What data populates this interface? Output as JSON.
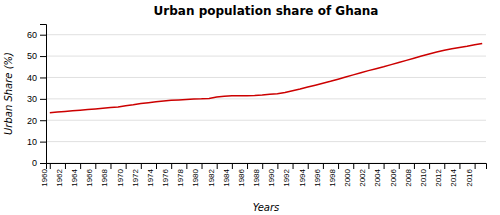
{
  "chart_data": {
    "type": "line",
    "title": "Urban population share of Ghana",
    "x_label": "Years",
    "y_label": "Urban Share (%)",
    "color": "#cc0000",
    "x": [
      1960,
      1961,
      1962,
      1963,
      1964,
      1965,
      1966,
      1967,
      1968,
      1969,
      1970,
      1971,
      1972,
      1973,
      1974,
      1975,
      1976,
      1977,
      1978,
      1979,
      1980,
      1981,
      1982,
      1983,
      1984,
      1985,
      1986,
      1987,
      1988,
      1989,
      1990,
      1991,
      1992,
      1993,
      1994,
      1995,
      1996,
      1997,
      1998,
      1999,
      2000,
      2001,
      2002,
      2003,
      2004,
      2005,
      2006,
      2007,
      2008,
      2009,
      2010,
      2011,
      2012,
      2013,
      2014,
      2015,
      2016,
      2017
    ],
    "values": [
      23.5,
      23.8,
      24.1,
      24.4,
      24.7,
      25.0,
      25.3,
      25.6,
      25.9,
      26.2,
      26.8,
      27.2,
      27.8,
      28.2,
      28.6,
      29.0,
      29.3,
      29.5,
      29.7,
      29.9,
      30.0,
      30.2,
      30.9,
      31.2,
      31.4,
      31.4,
      31.5,
      31.6,
      31.8,
      32.1,
      32.4,
      33.0,
      33.8,
      34.6,
      35.5,
      36.4,
      37.3,
      38.2,
      39.2,
      40.2,
      41.2,
      42.2,
      43.2,
      44.1,
      45.0,
      46.0,
      47.0,
      48.0,
      49.0,
      50.0,
      51.0,
      51.9,
      52.7,
      53.4,
      54.0,
      54.6,
      55.3,
      55.9
    ],
    "xlim": [
      1959.5,
      2017.5
    ],
    "xticks": [
      1960,
      1962,
      1964,
      1966,
      1968,
      1970,
      1972,
      1974,
      1976,
      1978,
      1980,
      1982,
      1984,
      1986,
      1988,
      1990,
      1992,
      1994,
      1996,
      1998,
      2000,
      2002,
      2004,
      2006,
      2008,
      2010,
      2012,
      2014,
      2016
    ],
    "ylim": [
      0,
      65
    ],
    "yticks": [
      0,
      10,
      20,
      30,
      40,
      50,
      60
    ],
    "grid": "y"
  }
}
